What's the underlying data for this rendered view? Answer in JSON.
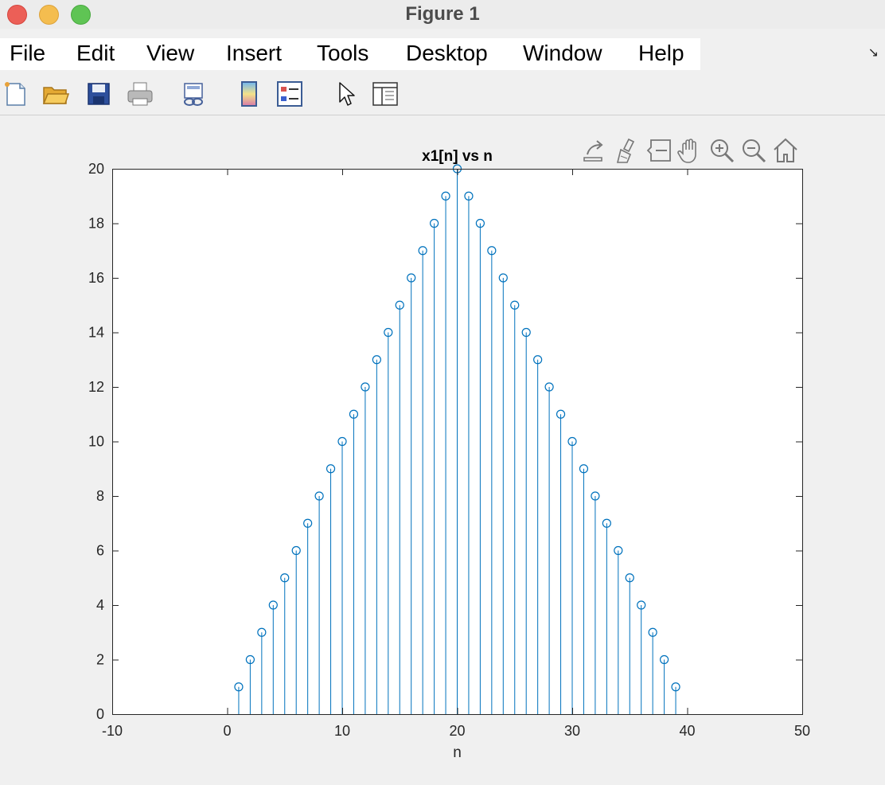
{
  "window": {
    "title": "Figure 1"
  },
  "menu": {
    "items": [
      "File",
      "Edit",
      "View",
      "Insert",
      "Tools",
      "Desktop",
      "Window",
      "Help"
    ]
  },
  "toolbar": {
    "icons": [
      "new-figure-icon",
      "open-icon",
      "save-icon",
      "print-icon",
      "link-plot-icon",
      "colorbar-icon",
      "legend-icon",
      "edit-plot-icon",
      "property-inspector-icon"
    ]
  },
  "axes_toolbar": {
    "icons": [
      "export-icon",
      "brush-icon",
      "data-tips-icon",
      "pan-icon",
      "zoom-in-icon",
      "zoom-out-icon",
      "home-icon"
    ]
  },
  "colors": {
    "stem": "#0072bd",
    "axes": "#262626",
    "figure_bg": "#f0f0f0"
  },
  "chart_data": {
    "type": "stem",
    "title": "x1[n] vs n",
    "xlabel": "n",
    "ylabel": "",
    "xlim": [
      -10,
      50
    ],
    "ylim": [
      0,
      20
    ],
    "xticks": [
      -10,
      0,
      10,
      20,
      30,
      40,
      50
    ],
    "yticks": [
      0,
      2,
      4,
      6,
      8,
      10,
      12,
      14,
      16,
      18,
      20
    ],
    "grid": false,
    "marker": "circle",
    "x": [
      1,
      2,
      3,
      4,
      5,
      6,
      7,
      8,
      9,
      10,
      11,
      12,
      13,
      14,
      15,
      16,
      17,
      18,
      19,
      20,
      21,
      22,
      23,
      24,
      25,
      26,
      27,
      28,
      29,
      30,
      31,
      32,
      33,
      34,
      35,
      36,
      37,
      38,
      39
    ],
    "y": [
      1,
      2,
      3,
      4,
      5,
      6,
      7,
      8,
      9,
      10,
      11,
      12,
      13,
      14,
      15,
      16,
      17,
      18,
      19,
      20,
      19,
      18,
      17,
      16,
      15,
      14,
      13,
      12,
      11,
      10,
      9,
      8,
      7,
      6,
      5,
      4,
      3,
      2,
      1
    ]
  }
}
